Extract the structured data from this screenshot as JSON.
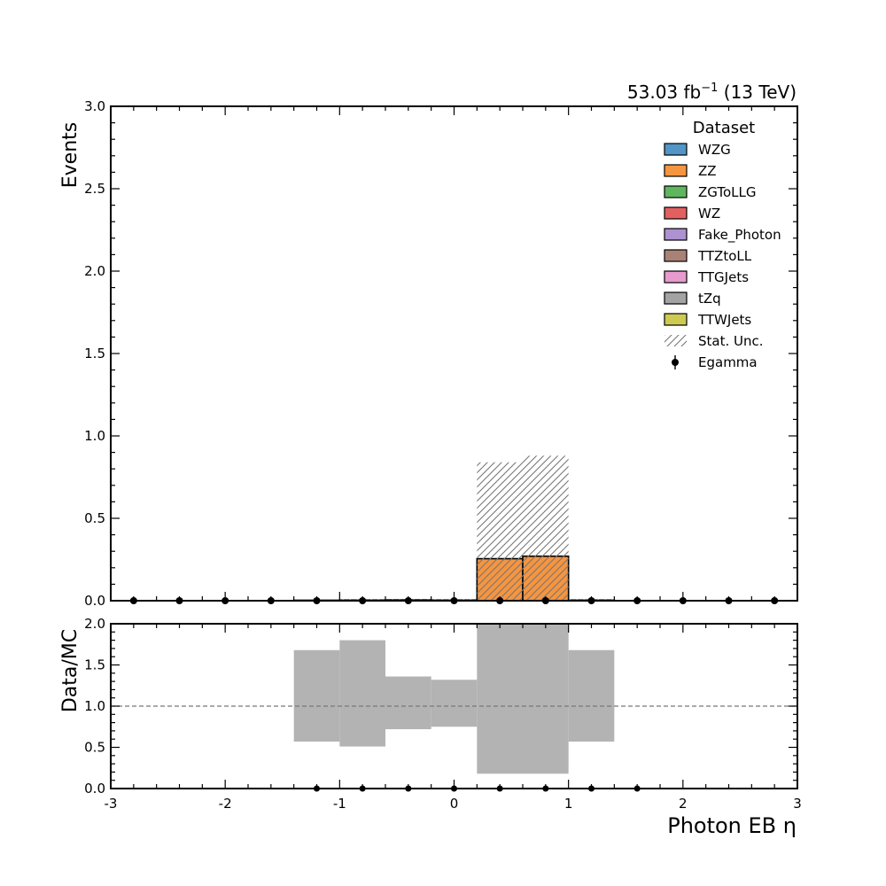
{
  "header": {
    "lumi_main": "53.03 fb",
    "lumi_sup": "−1",
    "lumi_energy": " (13 TeV)"
  },
  "chart_data": {
    "type": "bar",
    "xlabel": "Photon EB η",
    "xlim": [
      -3,
      3
    ],
    "bin_edges": [
      -3.0,
      -2.6,
      -2.2,
      -1.8,
      -1.4,
      -1.0,
      -0.6,
      -0.2,
      0.2,
      0.6,
      1.0,
      1.4,
      1.8,
      2.2,
      2.6,
      3.0
    ],
    "main": {
      "ylabel": "Events",
      "ylim": [
        0,
        3
      ],
      "yticks": [
        "0.0",
        "0.5",
        "1.0",
        "1.5",
        "2.0",
        "2.5",
        "3.0"
      ],
      "xticks": [
        "-3",
        "-2",
        "-1",
        "0",
        "1",
        "2",
        "3"
      ],
      "series": [
        {
          "name": "WZG",
          "color": "#3f8ac0",
          "values": [
            0,
            0,
            0,
            0,
            0,
            0,
            0,
            0,
            0,
            0,
            0,
            0,
            0,
            0,
            0
          ]
        },
        {
          "name": "ZZ",
          "color": "#f58a2a",
          "values": [
            0,
            0,
            0,
            0,
            0.003,
            0.004,
            0.005,
            0.004,
            0.255,
            0.27,
            0.004,
            0,
            0,
            0,
            0
          ]
        },
        {
          "name": "ZGToLLG",
          "color": "#4fad4e",
          "values": [
            0,
            0,
            0,
            0,
            0,
            0,
            0,
            0,
            0,
            0,
            0,
            0,
            0,
            0,
            0
          ]
        },
        {
          "name": "WZ",
          "color": "#e04f4f",
          "values": [
            0,
            0,
            0,
            0,
            0,
            0,
            0,
            0,
            0,
            0,
            0,
            0,
            0,
            0,
            0
          ]
        },
        {
          "name": "Fake_Photon",
          "color": "#a485cb",
          "values": [
            0,
            0,
            0,
            0,
            0,
            0,
            0,
            0,
            0,
            0,
            0,
            0,
            0,
            0,
            0
          ]
        },
        {
          "name": "TTZtoLL",
          "color": "#a17367",
          "values": [
            0,
            0,
            0,
            0,
            0,
            0,
            0,
            0,
            0,
            0,
            0,
            0,
            0,
            0,
            0
          ]
        },
        {
          "name": "TTGJets",
          "color": "#e48fc9",
          "values": [
            0,
            0,
            0,
            0,
            0,
            0,
            0,
            0,
            0,
            0,
            0,
            0,
            0,
            0,
            0
          ]
        },
        {
          "name": "tZq",
          "color": "#999999",
          "values": [
            0,
            0,
            0,
            0,
            0,
            0,
            0,
            0,
            0,
            0,
            0,
            0,
            0,
            0,
            0
          ]
        },
        {
          "name": "TTWJets",
          "color": "#c8c43e",
          "values": [
            0,
            0,
            0,
            0,
            0,
            0,
            0,
            0,
            0,
            0,
            0,
            0,
            0,
            0,
            0
          ]
        }
      ],
      "stat_unc": {
        "name": "Stat. Unc.",
        "low": [
          0,
          0,
          0,
          0,
          0,
          0,
          0,
          0,
          0,
          0,
          0,
          0,
          0,
          0,
          0
        ],
        "high": [
          0,
          0,
          0,
          0,
          0.006,
          0.008,
          0.01,
          0.008,
          0.84,
          0.88,
          0.008,
          0,
          0,
          0,
          0
        ]
      },
      "data": {
        "name": "Egamma",
        "x": [
          -2.8,
          -2.4,
          -2.0,
          -1.6,
          -1.2,
          -0.8,
          -0.4,
          0.0,
          0.4,
          0.8,
          1.2,
          1.6,
          2.0,
          2.4,
          2.8
        ],
        "y": [
          0,
          0,
          0,
          0,
          0,
          0,
          0,
          0,
          0,
          0,
          0,
          0,
          0,
          0,
          0
        ]
      },
      "legend_title": "Dataset",
      "legend_position": "top-right"
    },
    "ratio": {
      "ylabel": "Data/MC",
      "ylim": [
        0,
        2
      ],
      "yticks": [
        "0.0",
        "0.5",
        "1.0",
        "1.5",
        "2.0"
      ],
      "reference_line": 1.0,
      "band_low": [
        null,
        null,
        null,
        null,
        0.57,
        0.51,
        0.72,
        0.75,
        0.18,
        0.18,
        0.57,
        null,
        null,
        null,
        null
      ],
      "band_high": [
        null,
        null,
        null,
        null,
        1.68,
        1.8,
        1.36,
        1.32,
        2.0,
        2.0,
        1.68,
        null,
        null,
        null,
        null
      ],
      "points": {
        "x": [
          -1.2,
          -0.8,
          -0.4,
          0.0,
          0.4,
          0.8,
          1.2,
          1.6
        ],
        "y": [
          0,
          0,
          0,
          0,
          0,
          0,
          0,
          0
        ]
      }
    }
  }
}
